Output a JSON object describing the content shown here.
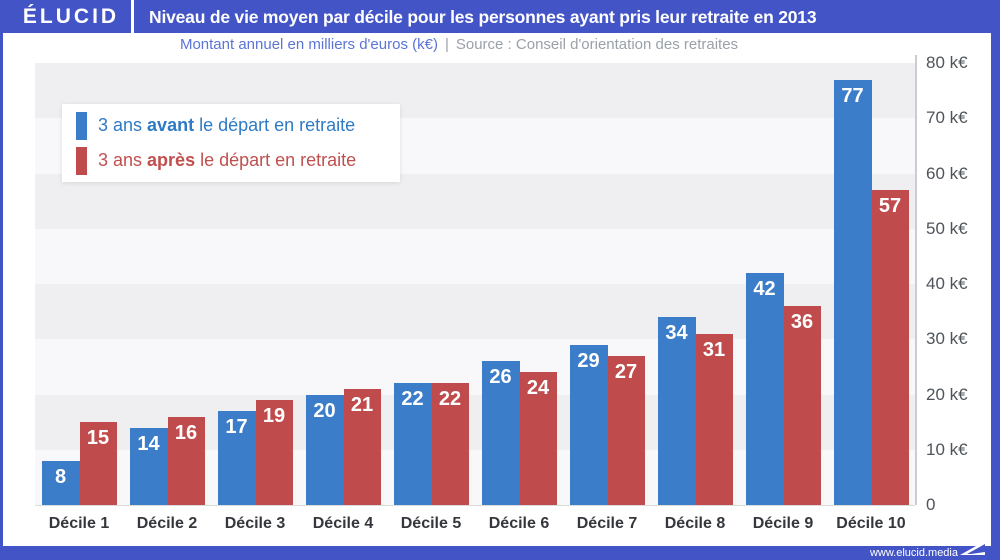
{
  "header": {
    "logo": "ÉLUCID",
    "title": "Niveau de vie moyen par décile pour les personnes ayant pris leur retraite en 2013"
  },
  "subtitle": {
    "metric": "Montant annuel en milliers d'euros (k€)",
    "separator": "|",
    "source": "Source : Conseil d'orientation des retraites"
  },
  "legend": {
    "items": [
      {
        "prefix": "3 ans ",
        "emphasis": "avant",
        "suffix": " le départ en retraite",
        "color": "#3c7dc9"
      },
      {
        "prefix": "3 ans ",
        "emphasis": "après",
        "suffix": " le départ en retraite",
        "color": "#c04b4d"
      }
    ]
  },
  "footer": {
    "site": "www.elucid.media"
  },
  "colors": {
    "frame_blue": "#4355c6",
    "bar_blue": "#3c7dc9",
    "bar_red": "#c04b4d",
    "stripe_gray": "#efeff1",
    "stripe_light": "#f8f8fa"
  },
  "chart_data": {
    "type": "bar",
    "title": "Niveau de vie moyen par décile pour les personnes ayant pris leur retraite en 2013",
    "subtitle": "Montant annuel en milliers d'euros (k€)",
    "source": "Source : Conseil d'orientation des retraites",
    "categories": [
      "Décile 1",
      "Décile 2",
      "Décile 3",
      "Décile 4",
      "Décile 5",
      "Décile 6",
      "Décile 7",
      "Décile 8",
      "Décile 9",
      "Décile 10"
    ],
    "series": [
      {
        "name": "3 ans avant le départ en retraite",
        "color": "#3c7dc9",
        "values": [
          8,
          14,
          17,
          20,
          22,
          26,
          29,
          34,
          42,
          77
        ]
      },
      {
        "name": "3 ans après le départ en retraite",
        "color": "#c04b4d",
        "values": [
          15,
          16,
          19,
          21,
          22,
          24,
          27,
          31,
          36,
          57
        ]
      }
    ],
    "xlabel": "",
    "ylabel": "k€",
    "ylim": [
      0,
      80
    ],
    "yticks": [
      {
        "value": 80,
        "label": "80 k€"
      },
      {
        "value": 70,
        "label": "70 k€"
      },
      {
        "value": 60,
        "label": "60 k€"
      },
      {
        "value": 50,
        "label": "50 k€"
      },
      {
        "value": 40,
        "label": "40 k€"
      },
      {
        "value": 30,
        "label": "30 k€"
      },
      {
        "value": 20,
        "label": "20 k€"
      },
      {
        "value": 10,
        "label": "10 k€"
      },
      {
        "value": 0,
        "label": "0"
      }
    ],
    "grid": "horizontal-bands",
    "legend_position": "top-left",
    "value_labels": "inside-top-white"
  }
}
